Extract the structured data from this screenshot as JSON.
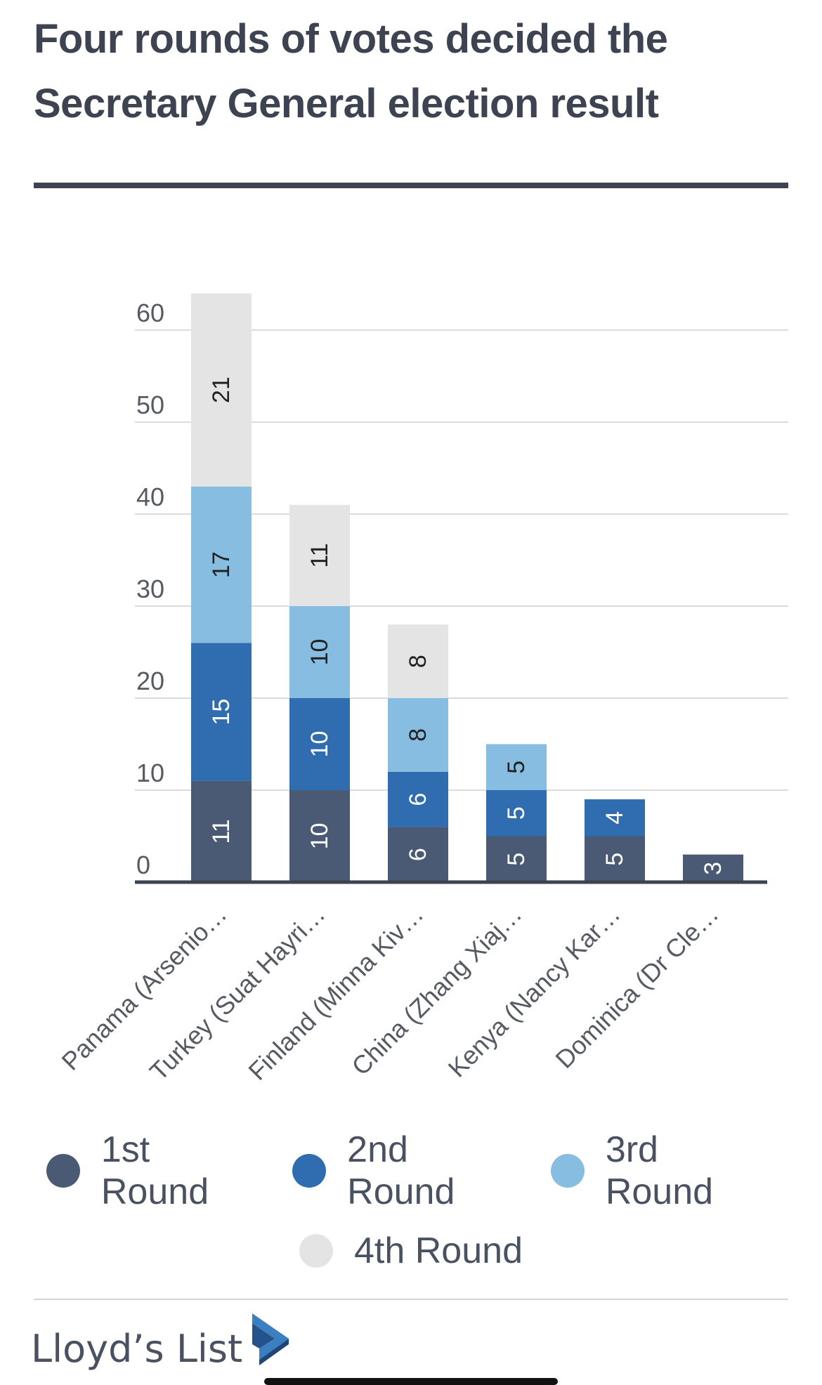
{
  "header": {
    "title": "Four rounds of votes decided the Secretary General election result"
  },
  "chart_data": {
    "type": "bar",
    "stacked": true,
    "title": "Four rounds of votes decided the Secretary General election result",
    "xlabel": "",
    "ylabel": "",
    "categories": [
      "Panama (Arsenio…",
      "Turkey (Suat Hayri…",
      "Finland (Minna Kiv…",
      "China (Zhang Xiaj…",
      "Kenya (Nancy Kar…",
      "Dominica (Dr Cle…"
    ],
    "series": [
      {
        "name": "1st Round",
        "color": "#4a5a75",
        "values": [
          11,
          10,
          6,
          5,
          5,
          3
        ]
      },
      {
        "name": "2nd Round",
        "color": "#2f6db0",
        "values": [
          15,
          10,
          6,
          5,
          4,
          null
        ]
      },
      {
        "name": "3rd Round",
        "color": "#86bde0",
        "values": [
          17,
          10,
          8,
          5,
          null,
          null
        ]
      },
      {
        "name": "4th Round",
        "color": "#e4e4e4",
        "values": [
          21,
          11,
          8,
          null,
          null,
          null
        ]
      }
    ],
    "ylim": [
      0,
      60
    ],
    "yticks": [
      0,
      10,
      20,
      30,
      40,
      50,
      60
    ],
    "grid": true,
    "legend_position": "bottom"
  },
  "legend": {
    "items": [
      {
        "label": "1st Round",
        "color": "#4a5a75"
      },
      {
        "label": "2nd Round",
        "color": "#2f6db0"
      },
      {
        "label": "3rd Round",
        "color": "#86bde0"
      },
      {
        "label": "4th Round",
        "color": "#e4e4e4"
      }
    ]
  },
  "footer": {
    "brand": "Lloyd’s List",
    "logo_icon": "lloyds-list-chevron-icon"
  }
}
